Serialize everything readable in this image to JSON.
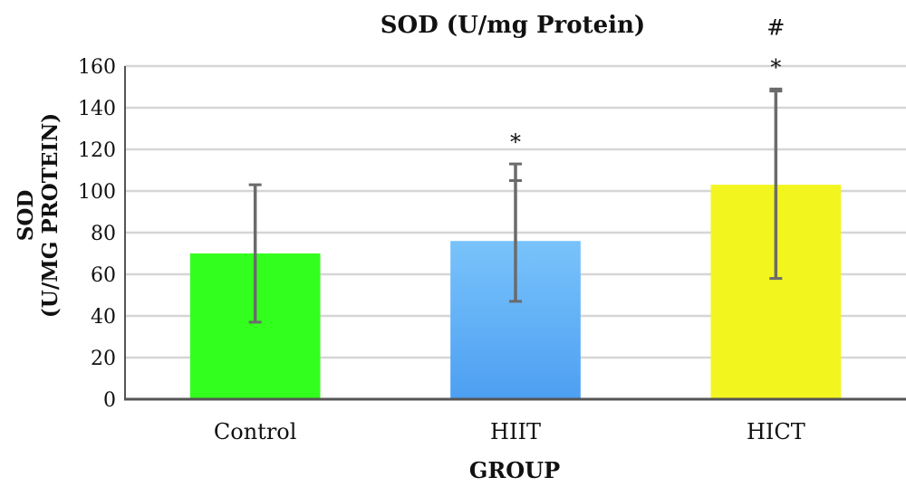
{
  "chart_data": {
    "type": "bar",
    "title": "SOD (U/mg Protein)",
    "xlabel": "GROUP",
    "ylabel": [
      "SOD",
      "(U/MG PROTEIN)"
    ],
    "categories": [
      "Control",
      "HIIT",
      "HICT"
    ],
    "values": [
      70,
      76,
      103
    ],
    "error_bars": [
      {
        "lower": 37,
        "upper": 103
      },
      {
        "lower": 47,
        "upper": 113,
        "cap_marks": [
          105
        ]
      },
      {
        "lower": 58,
        "upper": 149,
        "cap_marks": [
          148
        ]
      }
    ],
    "annotations": [
      [],
      [
        "*"
      ],
      [
        "#",
        "*"
      ]
    ],
    "colors": [
      "#33ff1f",
      "#6fbdfa",
      "#f3f51f"
    ],
    "ylim": [
      0,
      160
    ],
    "yticks": [
      0,
      20,
      40,
      60,
      80,
      100,
      120,
      140,
      160
    ],
    "grid": true,
    "legend": "none"
  }
}
